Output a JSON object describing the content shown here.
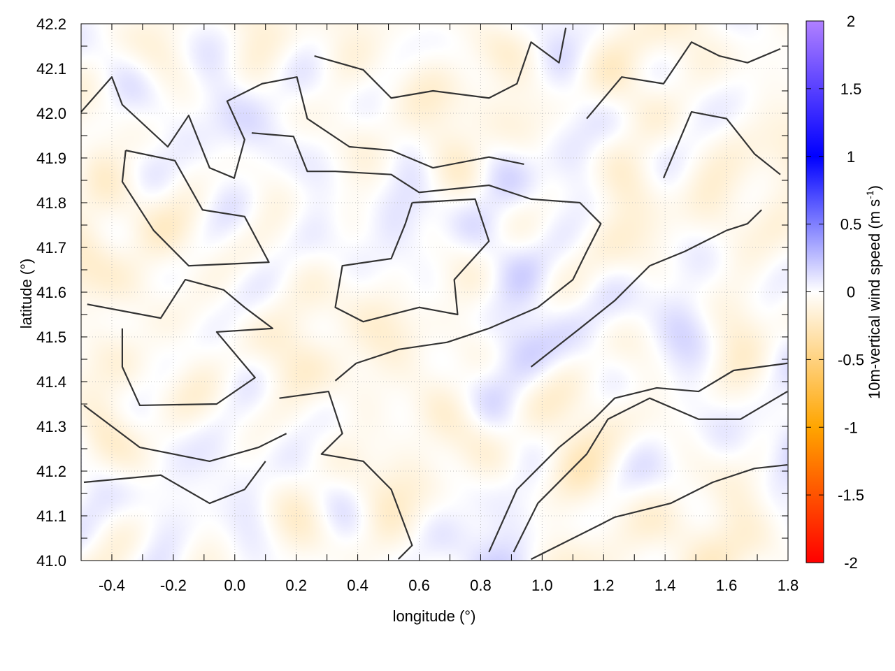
{
  "chart_data": {
    "type": "heatmap",
    "xlabel": "longitude (°)",
    "ylabel": "latitude (°)",
    "xlim": [
      -0.5,
      1.8
    ],
    "ylim": [
      41.0,
      42.2
    ],
    "x_ticks": [
      "-0.4",
      "-0.2",
      "0.0",
      "0.2",
      "0.4",
      "0.6",
      "0.8",
      "1.0",
      "1.2",
      "1.4",
      "1.6",
      "1.8"
    ],
    "y_ticks": [
      "41.0",
      "41.1",
      "41.2",
      "41.3",
      "41.4",
      "41.5",
      "41.6",
      "41.7",
      "41.8",
      "41.9",
      "42.0",
      "42.1",
      "42.2"
    ],
    "grid": true,
    "colorbar": {
      "label": "10m-vertical wind speed (m s",
      "label_superscript": "-1",
      "label_suffix": ")",
      "range": [
        -2,
        2
      ],
      "ticks": [
        "2",
        "1.5",
        "1",
        "0.5",
        "0",
        "-0.5",
        "-1",
        "-1.5",
        "-2"
      ],
      "colormap": [
        {
          "value": -2,
          "color": "#ff0000"
        },
        {
          "value": -1,
          "color": "#ffa500"
        },
        {
          "value": 0,
          "color": "#ffffff"
        },
        {
          "value": 1,
          "color": "#0000ff"
        },
        {
          "value": 2,
          "color": "#b080ff"
        }
      ]
    },
    "contour_color": "#333333",
    "contours": [
      [
        [
          0.055,
          41.956
        ],
        [
          0.191,
          41.948
        ],
        [
          0.236,
          41.87
        ],
        [
          0.327,
          41.87
        ],
        [
          0.509,
          41.863
        ],
        [
          0.6,
          41.823
        ],
        [
          0.827,
          41.839
        ],
        [
          0.964,
          41.808
        ],
        [
          1.123,
          41.8
        ],
        [
          1.191,
          41.753
        ],
        [
          1.145,
          41.691
        ],
        [
          1.1,
          41.628
        ],
        [
          0.986,
          41.566
        ],
        [
          0.827,
          41.519
        ],
        [
          0.691,
          41.488
        ],
        [
          0.532,
          41.472
        ],
        [
          0.395,
          41.441
        ],
        [
          0.327,
          41.402
        ]
      ],
      [
        [
          0.577,
          41.8
        ],
        [
          0.782,
          41.808
        ],
        [
          0.827,
          41.714
        ],
        [
          0.714,
          41.628
        ],
        [
          0.725,
          41.55
        ],
        [
          0.6,
          41.566
        ],
        [
          0.418,
          41.534
        ],
        [
          0.327,
          41.566
        ],
        [
          0.35,
          41.659
        ],
        [
          0.509,
          41.675
        ],
        [
          0.555,
          41.753
        ],
        [
          0.577,
          41.8
        ]
      ],
      [
        [
          -0.355,
          41.917
        ],
        [
          -0.195,
          41.894
        ],
        [
          -0.105,
          41.784
        ],
        [
          0.032,
          41.769
        ],
        [
          0.111,
          41.667
        ],
        [
          -0.15,
          41.659
        ],
        [
          -0.264,
          41.738
        ],
        [
          -0.366,
          41.847
        ],
        [
          -0.355,
          41.917
        ]
      ],
      [
        [
          -0.48,
          41.573
        ],
        [
          -0.241,
          41.542
        ],
        [
          -0.161,
          41.628
        ],
        [
          -0.036,
          41.605
        ],
        [
          0.032,
          41.566
        ],
        [
          0.123,
          41.519
        ],
        [
          -0.059,
          41.511
        ],
        [
          0.066,
          41.409
        ],
        [
          -0.059,
          41.35
        ],
        [
          -0.309,
          41.347
        ],
        [
          -0.366,
          41.433
        ],
        [
          -0.366,
          41.519
        ]
      ],
      [
        [
          0.907,
          41.019
        ],
        [
          0.986,
          41.128
        ],
        [
          1.145,
          41.238
        ],
        [
          1.214,
          41.316
        ],
        [
          1.35,
          41.363
        ],
        [
          1.509,
          41.316
        ],
        [
          1.645,
          41.316
        ],
        [
          1.798,
          41.378
        ]
      ],
      [
        [
          0.964,
          41.003
        ],
        [
          1.191,
          41.081
        ],
        [
          1.236,
          41.097
        ],
        [
          1.418,
          41.128
        ],
        [
          1.555,
          41.175
        ],
        [
          1.691,
          41.206
        ],
        [
          1.798,
          41.214
        ]
      ],
      [
        [
          0.827,
          41.019
        ],
        [
          0.918,
          41.159
        ],
        [
          1.055,
          41.253
        ],
        [
          1.168,
          41.316
        ],
        [
          1.236,
          41.363
        ],
        [
          1.373,
          41.386
        ],
        [
          1.509,
          41.378
        ],
        [
          1.623,
          41.425
        ],
        [
          1.798,
          41.441
        ]
      ],
      [
        [
          -0.5,
          42.003
        ],
        [
          -0.4,
          42.081
        ],
        [
          -0.366,
          42.019
        ],
        [
          -0.218,
          41.925
        ],
        [
          -0.15,
          41.995
        ],
        [
          -0.082,
          41.878
        ],
        [
          -0.002,
          41.855
        ],
        [
          0.032,
          41.941
        ],
        [
          -0.025,
          42.027
        ],
        [
          0.089,
          42.066
        ],
        [
          0.202,
          42.081
        ],
        [
          0.236,
          41.988
        ],
        [
          0.373,
          41.925
        ],
        [
          0.509,
          41.917
        ],
        [
          0.645,
          41.878
        ],
        [
          0.827,
          41.902
        ],
        [
          0.941,
          41.886
        ]
      ],
      [
        [
          1.145,
          41.988
        ],
        [
          1.259,
          42.081
        ],
        [
          1.395,
          42.066
        ],
        [
          1.486,
          42.159
        ],
        [
          1.577,
          42.128
        ],
        [
          1.668,
          42.113
        ],
        [
          1.775,
          42.144
        ]
      ],
      [
        [
          1.395,
          41.855
        ],
        [
          1.486,
          42.003
        ],
        [
          1.6,
          41.988
        ],
        [
          1.691,
          41.909
        ],
        [
          1.775,
          41.863
        ]
      ],
      [
        [
          0.964,
          41.433
        ],
        [
          1.123,
          41.519
        ],
        [
          1.236,
          41.581
        ],
        [
          1.35,
          41.659
        ],
        [
          1.464,
          41.691
        ],
        [
          1.6,
          41.738
        ],
        [
          1.668,
          41.753
        ],
        [
          1.714,
          41.784
        ]
      ],
      [
        [
          0.259,
          42.128
        ],
        [
          0.418,
          42.097
        ],
        [
          0.509,
          42.034
        ],
        [
          0.645,
          42.05
        ],
        [
          0.827,
          42.034
        ],
        [
          0.918,
          42.066
        ],
        [
          0.964,
          42.159
        ],
        [
          1.055,
          42.113
        ],
        [
          1.077,
          42.191
        ]
      ],
      [
        [
          0.145,
          41.363
        ],
        [
          0.305,
          41.378
        ],
        [
          0.35,
          41.284
        ],
        [
          0.282,
          41.238
        ],
        [
          0.418,
          41.222
        ],
        [
          0.509,
          41.159
        ],
        [
          0.577,
          41.034
        ],
        [
          0.532,
          41.003
        ]
      ],
      [
        [
          -0.491,
          41.175
        ],
        [
          -0.241,
          41.191
        ],
        [
          -0.082,
          41.128
        ],
        [
          0.032,
          41.159
        ],
        [
          0.1,
          41.222
        ]
      ],
      [
        [
          -0.491,
          41.347
        ],
        [
          -0.309,
          41.253
        ],
        [
          -0.082,
          41.222
        ],
        [
          0.077,
          41.253
        ],
        [
          0.168,
          41.284
        ]
      ]
    ]
  }
}
